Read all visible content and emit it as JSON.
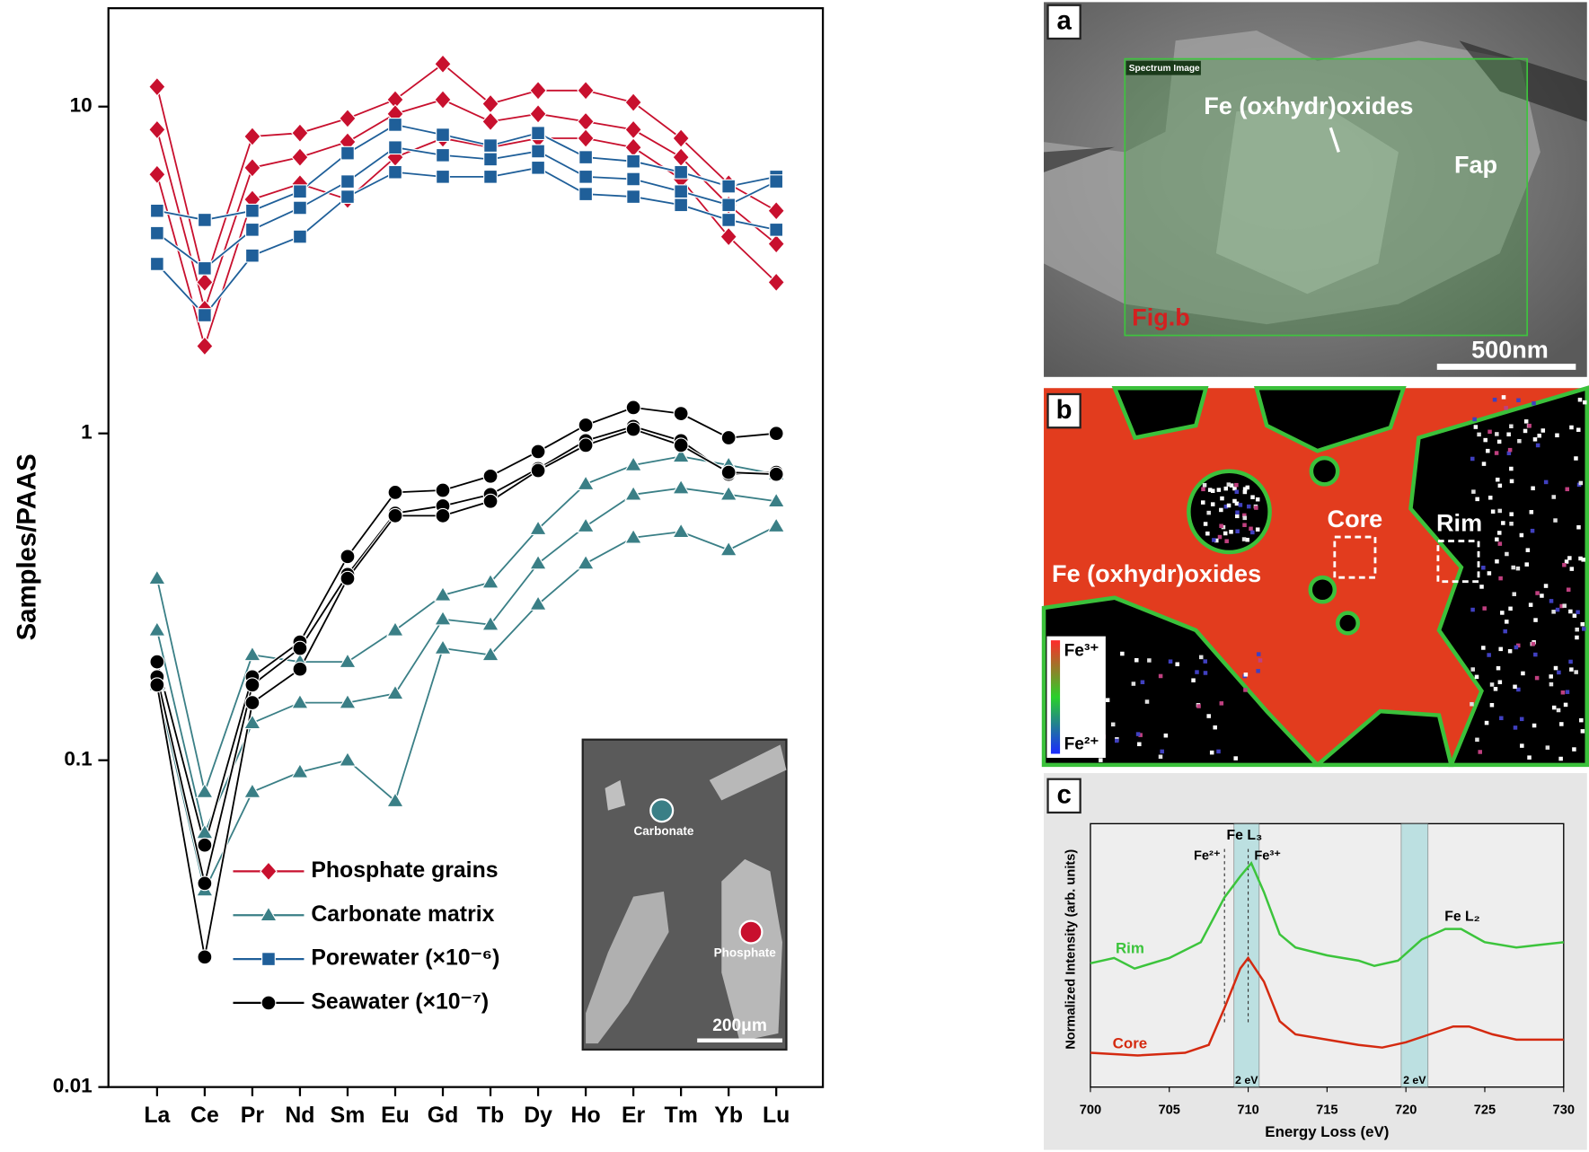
{
  "chart_data": [
    {
      "type": "line",
      "categories": [
        "La",
        "Ce",
        "Pr",
        "Nd",
        "Sm",
        "Eu",
        "Gd",
        "Tb",
        "Dy",
        "Ho",
        "Er",
        "Tm",
        "Yb",
        "Lu"
      ],
      "ylabel": "Samples/PAAS",
      "ylim": [
        0.01,
        20
      ],
      "yticks": [
        0.01,
        0.1,
        1,
        10
      ],
      "log_scale": true,
      "legend": "lower left",
      "series": [
        {
          "name": "Phosphate grains",
          "color": "#c8102e",
          "marker": "diamond",
          "lines": [
            [
              11.5,
              2.9,
              8.1,
              8.3,
              9.2,
              10.5,
              13.5,
              10.2,
              11.2,
              11.2,
              10.3,
              8,
              5.8,
              4.8
            ],
            [
              8.5,
              2.4,
              6.5,
              7,
              7.8,
              9.5,
              10.5,
              9,
              9.5,
              9,
              8.5,
              7,
              5,
              3.8
            ],
            [
              6.2,
              1.85,
              5.2,
              5.8,
              5.2,
              7,
              8,
              7.5,
              8,
              8,
              7.5,
              6,
              4,
              2.9
            ]
          ]
        },
        {
          "name": "Carbonate matrix",
          "color": "#3a7f86",
          "marker": "triangle",
          "lines": [
            [
              0.36,
              0.08,
              0.21,
              0.2,
              0.2,
              0.25,
              0.32,
              0.35,
              0.51,
              0.7,
              0.8,
              0.85,
              0.8,
              0.75
            ],
            [
              0.25,
              0.06,
              0.13,
              0.15,
              0.15,
              0.16,
              0.27,
              0.26,
              0.4,
              0.52,
              0.65,
              0.68,
              0.65,
              0.62
            ],
            [
              0.17,
              0.04,
              0.08,
              0.092,
              0.1,
              0.075,
              0.22,
              0.21,
              0.3,
              0.4,
              0.48,
              0.5,
              0.44,
              0.52
            ]
          ]
        },
        {
          "name": "Porewater (×10⁻⁶)",
          "color": "#1f5f99",
          "marker": "square",
          "lines": [
            [
              4.8,
              4.5,
              4.8,
              5.5,
              7.2,
              8.8,
              8.2,
              7.6,
              8.3,
              7,
              6.8,
              6.3,
              5.7,
              6.1
            ],
            [
              4.1,
              3.2,
              4.2,
              4.9,
              5.9,
              7.5,
              7.1,
              6.9,
              7.3,
              6.1,
              6,
              5.5,
              5,
              5.9
            ],
            [
              3.3,
              2.3,
              3.5,
              4,
              5.3,
              6.3,
              6.1,
              6.1,
              6.5,
              5.4,
              5.3,
              5,
              4.5,
              4.2
            ]
          ]
        },
        {
          "name": "Seawater (×10⁻⁷)",
          "color": "#000000",
          "marker": "circle",
          "lines": [
            [
              0.2,
              0.055,
              0.18,
              0.23,
              0.42,
              0.66,
              0.67,
              0.74,
              0.88,
              1.06,
              1.2,
              1.15,
              0.97,
              1
            ],
            [
              0.18,
              0.042,
              0.17,
              0.22,
              0.37,
              0.57,
              0.6,
              0.65,
              0.78,
              0.95,
              1.05,
              0.95,
              0.75,
              0.76
            ],
            [
              0.17,
              0.025,
              0.15,
              0.19,
              0.36,
              0.56,
              0.56,
              0.62,
              0.77,
              0.92,
              1.03,
              0.92,
              0.76,
              0.75
            ]
          ]
        }
      ]
    },
    {
      "type": "line",
      "letter": "c",
      "xlabel": "Energy Loss (eV)",
      "ylabel": "Normalized Intensity (arb. units)",
      "xlim": [
        700,
        730
      ],
      "xticks": [
        700,
        705,
        710,
        715,
        720,
        725,
        730
      ],
      "ylim": [
        0,
        1
      ],
      "series": [
        {
          "name": "Rim",
          "color": "#3cc43c",
          "x": [
            700,
            701.5,
            702.8,
            705,
            707,
            708.5,
            709.5,
            710.2,
            711,
            712,
            713,
            715,
            717,
            718,
            719.5,
            721,
            722.5,
            723.5,
            725,
            727,
            728.5,
            730
          ],
          "values": [
            0.47,
            0.49,
            0.45,
            0.49,
            0.55,
            0.72,
            0.8,
            0.85,
            0.74,
            0.58,
            0.53,
            0.5,
            0.48,
            0.46,
            0.48,
            0.56,
            0.6,
            0.6,
            0.55,
            0.53,
            0.54,
            0.55
          ]
        },
        {
          "name": "Core",
          "color": "#d42a10",
          "x": [
            700,
            703,
            706,
            707.5,
            708.5,
            709.5,
            710,
            711,
            712,
            713,
            715,
            717,
            718.5,
            720,
            721.5,
            723,
            724,
            725.5,
            727,
            730
          ],
          "values": [
            0.13,
            0.12,
            0.13,
            0.16,
            0.3,
            0.45,
            0.49,
            0.4,
            0.25,
            0.2,
            0.18,
            0.16,
            0.15,
            0.17,
            0.2,
            0.23,
            0.23,
            0.2,
            0.18,
            0.18
          ]
        }
      ],
      "bands": [
        {
          "xlim": [
            709.1,
            710.7
          ],
          "label": "2 eV"
        },
        {
          "xlim": [
            719.7,
            721.4
          ],
          "label": "2 eV"
        }
      ],
      "reference_lines": [
        {
          "x": 708.5,
          "label": "Fe²⁺"
        },
        {
          "x": 710,
          "label": "Fe³⁺"
        }
      ],
      "annotations": [
        "Fe L₃",
        "Fe L₂"
      ]
    }
  ],
  "images": {
    "a": {
      "letter": "a",
      "box": "Spectrum Image",
      "phase": "Fe (oxhydr)oxides",
      "host": "Fap",
      "ref": "Fig.b",
      "scale": "500nm"
    },
    "b": {
      "letter": "b",
      "core": "Core",
      "rim": "Rim",
      "phase": "Fe (oxhydr)oxides",
      "top": "Fe³⁺",
      "bottom": "Fe²⁺"
    },
    "inset": {
      "carbonate": "Carbonate",
      "phosphate": "Phosphate",
      "scale": "200μm"
    }
  }
}
